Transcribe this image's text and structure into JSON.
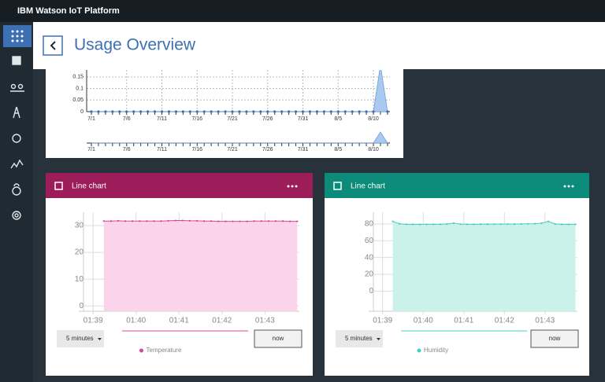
{
  "header": {
    "brand": "IBM Watson IoT Platform"
  },
  "page": {
    "title": "Usage Overview"
  },
  "usage_chart": {
    "type": "area",
    "categories": [
      "7/1",
      null,
      null,
      null,
      null,
      "7/6",
      null,
      null,
      null,
      null,
      "7/11",
      null,
      null,
      null,
      null,
      "7/16",
      null,
      null,
      null,
      null,
      "7/21",
      null,
      null,
      null,
      null,
      "7/26",
      null,
      null,
      null,
      null,
      "7/31",
      null,
      null,
      null,
      null,
      "8/5",
      null,
      null,
      null,
      null,
      "8/10",
      null,
      null
    ],
    "values": [
      0,
      0,
      0,
      0,
      0,
      0,
      0,
      0,
      0,
      0,
      0,
      0,
      0,
      0,
      0,
      0,
      0,
      0,
      0,
      0,
      0,
      0,
      0,
      0,
      0,
      0,
      0,
      0,
      0,
      0,
      0,
      0,
      0,
      0,
      0,
      0,
      0,
      0,
      0,
      0,
      0,
      0.2,
      0
    ],
    "color": "#a9c9ee",
    "ylim": [
      0,
      0.18
    ],
    "yticks": [
      0,
      0.05,
      0.1,
      0.15
    ],
    "grid": true
  },
  "charts": [
    {
      "type": "line",
      "title": "Line chart",
      "header_color": "#9d1c5a",
      "x": [
        15,
        25,
        35,
        45,
        55,
        65,
        75,
        85,
        95,
        105,
        115,
        125,
        135,
        145,
        155,
        165,
        175,
        185,
        195,
        205,
        215,
        225,
        235,
        245,
        255,
        265,
        275,
        285
      ],
      "series": [
        {
          "name": "Temperature",
          "color": "#d6479b",
          "fill": "#fbd3ea",
          "values": [
            31.7,
            31.7,
            31.8,
            31.7,
            31.7,
            31.7,
            31.7,
            31.7,
            31.7,
            31.8,
            31.9,
            31.9,
            31.8,
            31.8,
            31.7,
            31.7,
            31.6,
            31.6,
            31.6,
            31.6,
            31.6,
            31.7,
            31.7,
            31.7,
            31.7,
            31.7,
            31.6,
            31.6
          ]
        }
      ],
      "xlim": [
        -9,
        288
      ],
      "xticks": [
        {
          "value": 0,
          "label": "01:39"
        },
        {
          "value": 60,
          "label": "01:40"
        },
        {
          "value": 120,
          "label": "01:41"
        },
        {
          "value": 180,
          "label": "01:42"
        },
        {
          "value": 240,
          "label": "01:43"
        }
      ],
      "ylim": [
        -2,
        35
      ],
      "yticks": [
        0,
        10,
        20,
        30
      ],
      "grid": true,
      "range_button": "5 minutes",
      "now_button": "now"
    },
    {
      "type": "line",
      "title": "Line chart",
      "header_color": "#0c8a7a",
      "x": [
        15,
        25,
        35,
        45,
        55,
        65,
        75,
        85,
        95,
        105,
        115,
        125,
        135,
        145,
        155,
        165,
        175,
        185,
        195,
        205,
        215,
        225,
        235,
        245,
        255,
        265,
        275,
        285
      ],
      "series": [
        {
          "name": "Humidity",
          "color": "#45cfc2",
          "fill": "#cbf1eb",
          "values": [
            83,
            80.2,
            79.6,
            79.5,
            79.5,
            79.6,
            79.6,
            79.7,
            80,
            81,
            79.8,
            79.6,
            79.6,
            79.7,
            79.7,
            79.8,
            79.8,
            79.9,
            80,
            80.1,
            80.2,
            80.3,
            81,
            83,
            80,
            79.6,
            79.5,
            79.5
          ]
        }
      ],
      "xlim": [
        -9,
        288
      ],
      "xticks": [
        {
          "value": 0,
          "label": "01:39"
        },
        {
          "value": 60,
          "label": "01:40"
        },
        {
          "value": 120,
          "label": "01:41"
        },
        {
          "value": 180,
          "label": "01:42"
        },
        {
          "value": 240,
          "label": "01:43"
        }
      ],
      "ylim": [
        -24,
        94
      ],
      "yticks": [
        0,
        20,
        40,
        60,
        80
      ],
      "grid": true,
      "range_button": "5 minutes",
      "now_button": "now"
    }
  ]
}
